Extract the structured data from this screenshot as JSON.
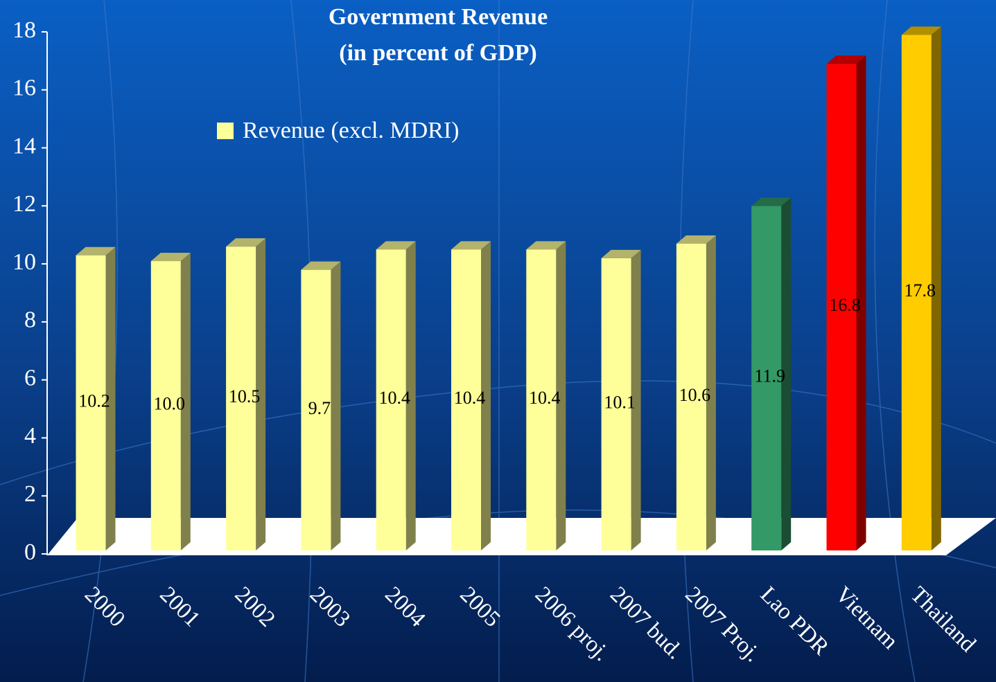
{
  "chart_data": {
    "type": "bar3d",
    "title": "Government Revenue",
    "subtitle": "(in percent of GDP)",
    "categories": [
      "2000",
      "2001",
      "2002",
      "2003",
      "2004",
      "2005",
      "2006 proj.",
      "2007 bud.",
      "2007 Proj.",
      "Lao PDR",
      "Vietnam",
      "Thailand"
    ],
    "series": [
      {
        "name": "Revenue (excl. MDRI)",
        "color": "#ffff99",
        "values": [
          10.2,
          10.0,
          10.5,
          9.7,
          10.4,
          10.4,
          10.4,
          10.1,
          10.6,
          11.9,
          16.8,
          17.8
        ],
        "value_labels": [
          "10.2",
          "10.0",
          "10.5",
          "9.7",
          "10.4",
          "10.4",
          "10.4",
          "10.1",
          "10.6",
          "11.9",
          "16.8",
          "17.8"
        ],
        "colors": [
          "#ffff99",
          "#ffff99",
          "#ffff99",
          "#ffff99",
          "#ffff99",
          "#ffff99",
          "#ffff99",
          "#ffff99",
          "#ffff99",
          "#339966",
          "#ff0000",
          "#ffcc00"
        ]
      }
    ],
    "ylim": [
      0,
      18
    ],
    "yticks": [
      0,
      2,
      4,
      6,
      8,
      10,
      12,
      14,
      16,
      18
    ],
    "legend": "top-left"
  }
}
